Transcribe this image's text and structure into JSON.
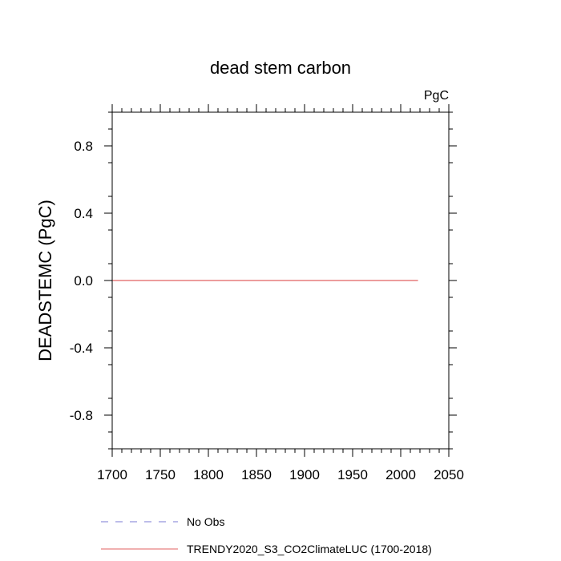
{
  "chart_data": {
    "type": "line",
    "title": "dead stem carbon",
    "units": "PgC",
    "xlabel": "",
    "ylabel": "DEADSTEMC  (PgC)",
    "xlim": [
      1700,
      2050
    ],
    "ylim": [
      -1.0,
      1.0
    ],
    "x_ticks": [
      1700,
      1750,
      1800,
      1850,
      1900,
      1950,
      2000,
      2050
    ],
    "x_tick_labels": [
      "1700",
      "1750",
      "1800",
      "1850",
      "1900",
      "1950",
      "2000",
      "2050"
    ],
    "y_ticks": [
      -0.8,
      -0.4,
      0.0,
      0.4,
      0.8
    ],
    "y_tick_labels": [
      "-0.8",
      "-0.4",
      "0.0",
      "0.4",
      "0.8"
    ],
    "grid": false,
    "legend_placement": "bottom",
    "series": [
      {
        "name": "No Obs",
        "style": "dashed",
        "color": "#7b7bd6",
        "x": [],
        "y": []
      },
      {
        "name": "TRENDY2020_S3_CO2ClimateLUC (1700-2018)",
        "style": "solid",
        "color": "#e06060",
        "x": [
          1700,
          2018
        ],
        "y": [
          0.0,
          0.0
        ]
      }
    ]
  }
}
